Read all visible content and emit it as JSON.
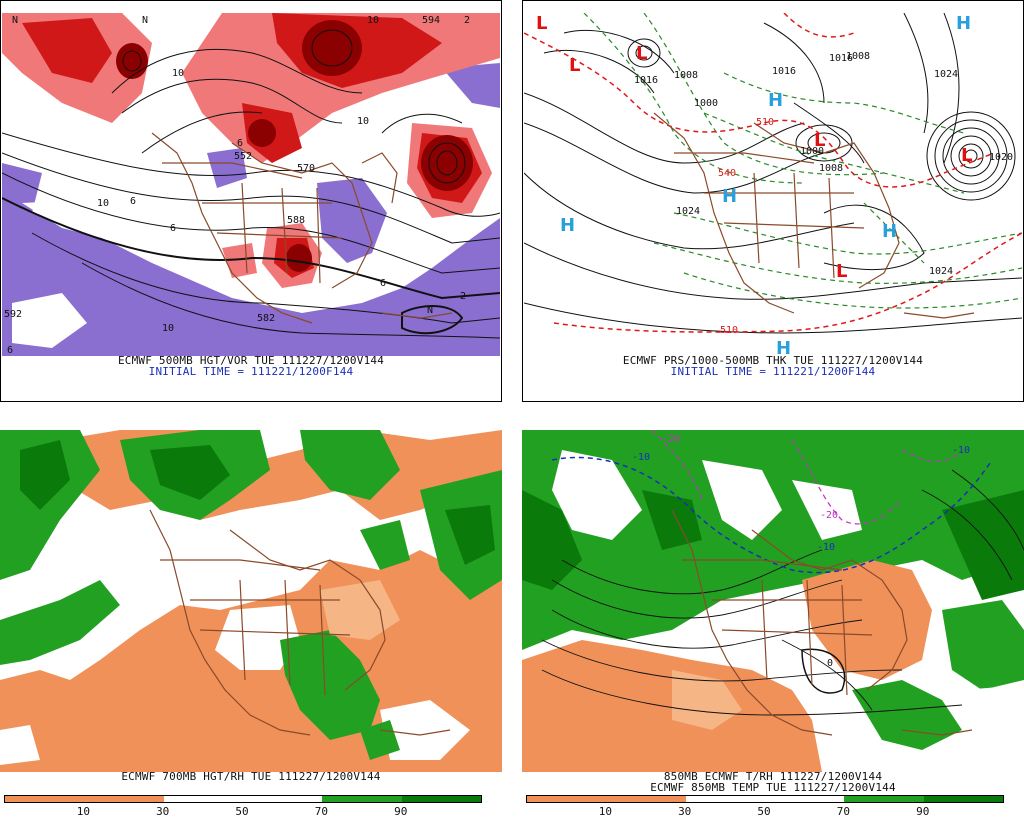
{
  "colors": {
    "vort_dark": "#8b0000",
    "vort_mid": "#d01818",
    "vort_light": "#f07878",
    "vort_neg": "#8a6ed0",
    "coast": "#8a4a2a",
    "rh_dry": "#f0915a",
    "rh_dry_light": "#f5b585",
    "rh_moist": "#22a022",
    "rh_very_moist": "#0a7a0a",
    "low_mark": "#e01010",
    "high_mark": "#28a0dc",
    "thickness_green": "#2a8a2a",
    "thickness_red": "#e01818"
  },
  "panels": {
    "top_left": {
      "caption": "ECMWF 500MB HGT/VOR TUE 111227/1200V144",
      "initial": "INITIAL TIME = 111221/1200F144",
      "labels": [
        "N",
        "10",
        "6",
        "552",
        "570",
        "588",
        "10",
        "6",
        "10",
        "6",
        "10",
        "2",
        "2",
        "N",
        "592",
        "582",
        "594",
        "6",
        "6",
        "10",
        "N"
      ]
    },
    "top_right": {
      "caption": "ECMWF PRS/1000-500MB THK TUE 111227/1200V144",
      "initial": "INITIAL TIME = 111221/1200F144",
      "lows": [
        "L",
        "L",
        "L",
        "L",
        "L",
        "L"
      ],
      "highs": [
        "H",
        "H",
        "H",
        "H",
        "H",
        "H"
      ],
      "labels": [
        "1024",
        "1008",
        "1016",
        "1000",
        "1000",
        "1008",
        "1024",
        "510",
        "510",
        "1024",
        "1016",
        "1008",
        "1020",
        "540",
        "1016"
      ]
    },
    "bottom_left": {
      "caption": "ECMWF 700MB HGT/RH TUE 111227/1200V144",
      "colorbar_ticks": [
        "10",
        "30",
        "50",
        "70",
        "90"
      ]
    },
    "bottom_right": {
      "caption1": "850MB ECMWF T/RH 111227/1200V144",
      "caption2": "ECMWF 850MB TEMP TUE 111227/1200V144",
      "colorbar_ticks": [
        "10",
        "30",
        "50",
        "70",
        "90"
      ],
      "labels": [
        "-10",
        "-20",
        "-20",
        "-10",
        "0",
        "-10"
      ]
    }
  }
}
